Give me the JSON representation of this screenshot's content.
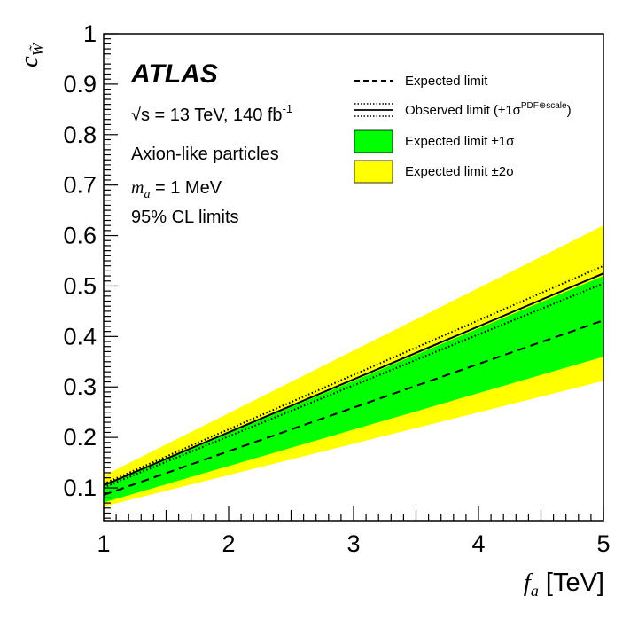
{
  "chart_data": {
    "type": "line",
    "title": "",
    "xlabel": "f_a [TeV]",
    "ylabel": "c_W̃",
    "xlim": [
      1,
      5
    ],
    "ylim": [
      0.035,
      1.0
    ],
    "x_ticks": [
      "1",
      "2",
      "3",
      "4",
      "5"
    ],
    "y_ticks": [
      "0.1",
      "0.2",
      "0.3",
      "0.4",
      "0.5",
      "0.6",
      "0.7",
      "0.8",
      "0.9",
      "1"
    ],
    "x": [
      1,
      5
    ],
    "series": [
      {
        "name": "Expected limit",
        "style": "dashed",
        "values": [
          0.086,
          0.432
        ]
      },
      {
        "name": "Observed limit",
        "style": "solid",
        "values": [
          0.105,
          0.525
        ]
      },
      {
        "name": "Observed limit +1σ (PDF⊕scale)",
        "style": "dotted",
        "values": [
          0.108,
          0.54
        ]
      },
      {
        "name": "Observed limit −1σ (PDF⊕scale)",
        "style": "dotted",
        "values": [
          0.101,
          0.505
        ]
      }
    ],
    "bands": [
      {
        "name": "Expected limit ±1σ",
        "color": "#00ff00",
        "lower": [
          0.071,
          0.36
        ],
        "upper": [
          0.104,
          0.52
        ]
      },
      {
        "name": "Expected limit ±2σ",
        "color": "#ffff00",
        "lower": [
          0.063,
          0.312
        ],
        "upper": [
          0.124,
          0.62
        ]
      }
    ],
    "legend_position": "top-right",
    "grid": false
  },
  "annotations": {
    "experiment": "ATLAS",
    "energy_prefix": "√s = 13 TeV, 140 fb",
    "energy_sup": "-1",
    "process": "Axion-like particles",
    "mass_var": "m",
    "mass_sub": "a",
    "mass_value": " = 1 MeV",
    "cl": "95% CL limits"
  },
  "legend": {
    "expected": "Expected limit",
    "observed": "Observed limit (±1σ",
    "observed_sup": "PDF⊕scale",
    "observed_close": ")",
    "band1": "Expected limit ±1σ",
    "band2": "Expected limit ±2σ"
  },
  "axis_titles": {
    "x_var": "f",
    "x_sub": "a",
    "x_unit": " [TeV]",
    "y_var": "c",
    "y_sub": "W̃"
  }
}
